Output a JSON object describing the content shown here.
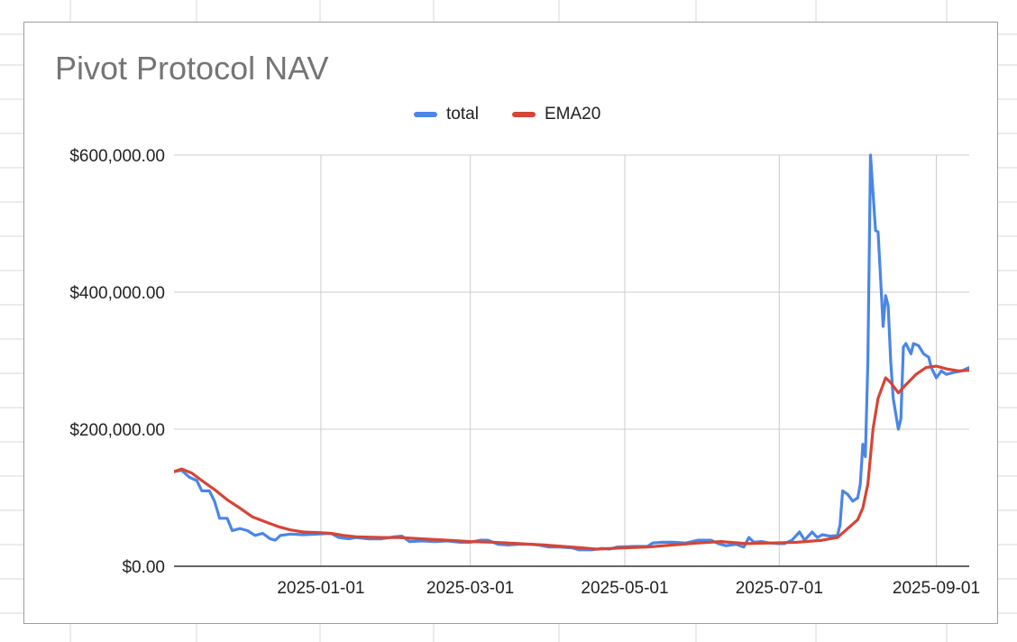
{
  "colors": {
    "sheet_grid": "#d9d9d9",
    "card_border": "#9e9e9e",
    "plot_grid": "#cccccc",
    "axis": "#333333",
    "title_text": "#757575",
    "tick_text": "#222222"
  },
  "chart_data": {
    "type": "line",
    "title": "Pivot Protocol NAV",
    "xlabel": "",
    "ylabel": "",
    "legend_position": "top-center",
    "grid": true,
    "x_range": [
      "2024-11-04",
      "2025-09-14"
    ],
    "ylim": [
      0,
      600000
    ],
    "y_ticks": [
      {
        "value": 0,
        "label": "$0.00"
      },
      {
        "value": 200000,
        "label": "$200,000.00"
      },
      {
        "value": 400000,
        "label": "$400,000.00"
      },
      {
        "value": 600000,
        "label": "$600,000.00"
      }
    ],
    "x_ticks": [
      "2025-01-01",
      "2025-03-01",
      "2025-05-01",
      "2025-07-01",
      "2025-09-01"
    ],
    "series": [
      {
        "name": "total",
        "color": "#4a86e8",
        "points": [
          [
            "2024-11-04",
            138000
          ],
          [
            "2024-11-07",
            140000
          ],
          [
            "2024-11-10",
            130000
          ],
          [
            "2024-11-13",
            125000
          ],
          [
            "2024-11-15",
            110000
          ],
          [
            "2024-11-18",
            110000
          ],
          [
            "2024-11-20",
            95000
          ],
          [
            "2024-11-22",
            70000
          ],
          [
            "2024-11-25",
            70000
          ],
          [
            "2024-11-27",
            52000
          ],
          [
            "2024-11-30",
            55000
          ],
          [
            "2024-12-03",
            52000
          ],
          [
            "2024-12-06",
            45000
          ],
          [
            "2024-12-09",
            48000
          ],
          [
            "2024-12-12",
            40000
          ],
          [
            "2024-12-14",
            38000
          ],
          [
            "2024-12-16",
            45000
          ],
          [
            "2024-12-20",
            47000
          ],
          [
            "2024-12-25",
            46000
          ],
          [
            "2024-12-31",
            47000
          ],
          [
            "2025-01-05",
            48000
          ],
          [
            "2025-01-08",
            42000
          ],
          [
            "2025-01-12",
            40000
          ],
          [
            "2025-01-15",
            42000
          ],
          [
            "2025-01-20",
            40000
          ],
          [
            "2025-01-25",
            40000
          ],
          [
            "2025-01-30",
            43000
          ],
          [
            "2025-02-02",
            44000
          ],
          [
            "2025-02-05",
            36000
          ],
          [
            "2025-02-10",
            37000
          ],
          [
            "2025-02-15",
            36000
          ],
          [
            "2025-02-20",
            37000
          ],
          [
            "2025-02-25",
            35000
          ],
          [
            "2025-03-01",
            35000
          ],
          [
            "2025-03-05",
            38000
          ],
          [
            "2025-03-08",
            38000
          ],
          [
            "2025-03-12",
            32000
          ],
          [
            "2025-03-16",
            31000
          ],
          [
            "2025-03-20",
            32000
          ],
          [
            "2025-03-25",
            32000
          ],
          [
            "2025-03-28",
            31000
          ],
          [
            "2025-04-01",
            28000
          ],
          [
            "2025-04-05",
            28000
          ],
          [
            "2025-04-10",
            27000
          ],
          [
            "2025-04-13",
            24000
          ],
          [
            "2025-04-18",
            24000
          ],
          [
            "2025-04-22",
            26000
          ],
          [
            "2025-04-25",
            25000
          ],
          [
            "2025-04-28",
            28000
          ],
          [
            "2025-05-05",
            29000
          ],
          [
            "2025-05-10",
            29000
          ],
          [
            "2025-05-12",
            34000
          ],
          [
            "2025-05-16",
            35000
          ],
          [
            "2025-05-20",
            35000
          ],
          [
            "2025-05-25",
            34000
          ],
          [
            "2025-05-30",
            38000
          ],
          [
            "2025-06-04",
            38000
          ],
          [
            "2025-06-07",
            33000
          ],
          [
            "2025-06-10",
            30000
          ],
          [
            "2025-06-14",
            32000
          ],
          [
            "2025-06-17",
            28000
          ],
          [
            "2025-06-19",
            42000
          ],
          [
            "2025-06-21",
            35000
          ],
          [
            "2025-06-24",
            36000
          ],
          [
            "2025-06-27",
            34000
          ],
          [
            "2025-07-01",
            33000
          ],
          [
            "2025-07-03",
            33000
          ],
          [
            "2025-07-06",
            38000
          ],
          [
            "2025-07-09",
            50000
          ],
          [
            "2025-07-11",
            38000
          ],
          [
            "2025-07-14",
            50000
          ],
          [
            "2025-07-16",
            42000
          ],
          [
            "2025-07-18",
            46000
          ],
          [
            "2025-07-21",
            44000
          ],
          [
            "2025-07-24",
            45000
          ],
          [
            "2025-07-25",
            60000
          ],
          [
            "2025-07-26",
            110000
          ],
          [
            "2025-07-28",
            105000
          ],
          [
            "2025-07-30",
            95000
          ],
          [
            "2025-08-01",
            100000
          ],
          [
            "2025-08-02",
            120000
          ],
          [
            "2025-08-03",
            178000
          ],
          [
            "2025-08-04",
            160000
          ],
          [
            "2025-08-05",
            300000
          ],
          [
            "2025-08-06",
            600000
          ],
          [
            "2025-08-07",
            545000
          ],
          [
            "2025-08-08",
            490000
          ],
          [
            "2025-08-09",
            488000
          ],
          [
            "2025-08-10",
            420000
          ],
          [
            "2025-08-11",
            350000
          ],
          [
            "2025-08-12",
            395000
          ],
          [
            "2025-08-13",
            380000
          ],
          [
            "2025-08-14",
            300000
          ],
          [
            "2025-08-15",
            245000
          ],
          [
            "2025-08-17",
            200000
          ],
          [
            "2025-08-18",
            215000
          ],
          [
            "2025-08-19",
            320000
          ],
          [
            "2025-08-20",
            325000
          ],
          [
            "2025-08-22",
            310000
          ],
          [
            "2025-08-23",
            325000
          ],
          [
            "2025-08-25",
            322000
          ],
          [
            "2025-08-27",
            310000
          ],
          [
            "2025-08-29",
            305000
          ],
          [
            "2025-08-30",
            290000
          ],
          [
            "2025-09-01",
            275000
          ],
          [
            "2025-09-03",
            285000
          ],
          [
            "2025-09-05",
            280000
          ],
          [
            "2025-09-08",
            283000
          ],
          [
            "2025-09-11",
            285000
          ],
          [
            "2025-09-14",
            290000
          ]
        ]
      },
      {
        "name": "EMA20",
        "color": "#d64535",
        "points": [
          [
            "2024-11-04",
            138000
          ],
          [
            "2024-11-07",
            142000
          ],
          [
            "2024-11-11",
            136000
          ],
          [
            "2024-11-15",
            125000
          ],
          [
            "2024-11-20",
            112000
          ],
          [
            "2024-11-25",
            97000
          ],
          [
            "2024-11-30",
            85000
          ],
          [
            "2024-12-05",
            72000
          ],
          [
            "2024-12-10",
            65000
          ],
          [
            "2024-12-15",
            58000
          ],
          [
            "2024-12-20",
            53000
          ],
          [
            "2024-12-25",
            50000
          ],
          [
            "2025-01-01",
            49000
          ],
          [
            "2025-01-05",
            48000
          ],
          [
            "2025-01-10",
            45000
          ],
          [
            "2025-01-15",
            43000
          ],
          [
            "2025-01-25",
            42000
          ],
          [
            "2025-02-01",
            42000
          ],
          [
            "2025-02-10",
            40000
          ],
          [
            "2025-02-20",
            38000
          ],
          [
            "2025-03-01",
            36000
          ],
          [
            "2025-03-10",
            35000
          ],
          [
            "2025-03-20",
            33000
          ],
          [
            "2025-03-30",
            31000
          ],
          [
            "2025-04-10",
            28000
          ],
          [
            "2025-04-20",
            25000
          ],
          [
            "2025-05-01",
            27000
          ],
          [
            "2025-05-10",
            28000
          ],
          [
            "2025-05-20",
            31000
          ],
          [
            "2025-05-30",
            34000
          ],
          [
            "2025-06-08",
            36000
          ],
          [
            "2025-06-18",
            33000
          ],
          [
            "2025-06-28",
            34000
          ],
          [
            "2025-07-08",
            35000
          ],
          [
            "2025-07-18",
            38000
          ],
          [
            "2025-07-24",
            42000
          ],
          [
            "2025-07-28",
            55000
          ],
          [
            "2025-08-01",
            68000
          ],
          [
            "2025-08-03",
            85000
          ],
          [
            "2025-08-05",
            120000
          ],
          [
            "2025-08-07",
            200000
          ],
          [
            "2025-08-09",
            245000
          ],
          [
            "2025-08-12",
            275000
          ],
          [
            "2025-08-14",
            268000
          ],
          [
            "2025-08-17",
            253000
          ],
          [
            "2025-08-20",
            265000
          ],
          [
            "2025-08-24",
            280000
          ],
          [
            "2025-08-28",
            290000
          ],
          [
            "2025-09-01",
            292000
          ],
          [
            "2025-09-05",
            288000
          ],
          [
            "2025-09-10",
            285000
          ],
          [
            "2025-09-14",
            286000
          ]
        ]
      }
    ]
  }
}
